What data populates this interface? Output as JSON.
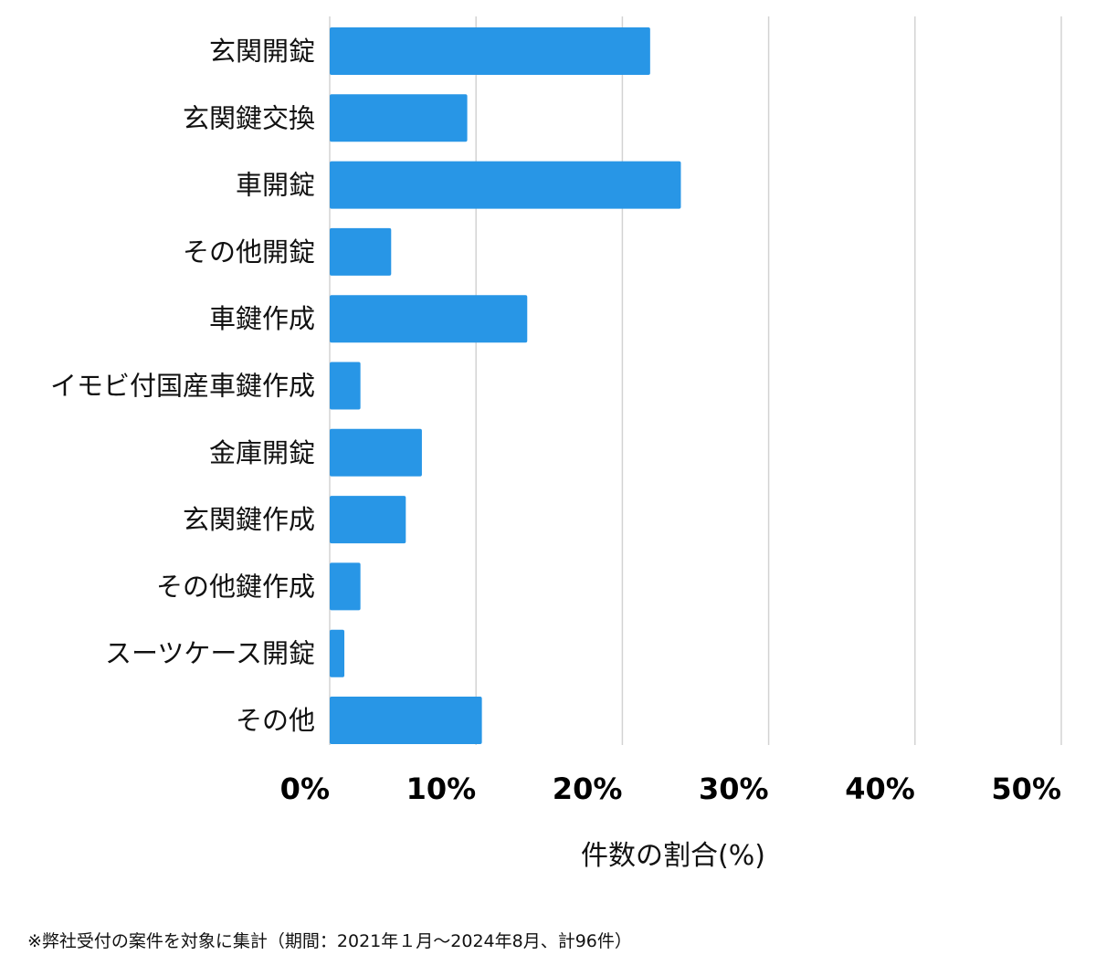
{
  "chart_data": {
    "type": "bar",
    "orientation": "horizontal",
    "categories": [
      "玄関開錠",
      "玄関鍵交換",
      "車開錠",
      "その他開錠",
      "車鍵作成",
      "イモビ付国産車鍵作成",
      "金庫開錠",
      "玄関鍵作成",
      "その他鍵作成",
      "スーツケース開錠",
      "その他"
    ],
    "values": [
      21.9,
      9.4,
      24.0,
      4.2,
      13.5,
      2.1,
      6.3,
      5.2,
      2.1,
      1.0,
      10.4
    ],
    "xlim": [
      0,
      50
    ],
    "xticks": [
      0,
      10,
      20,
      30,
      40,
      50
    ],
    "xtick_labels": [
      "0%",
      "10%",
      "20%",
      "30%",
      "40%",
      "50%"
    ],
    "xlabel": "件数の割合(%)",
    "ylabel": "",
    "title": "",
    "grid": "vertical",
    "bar_color": "#2896e6",
    "grid_color": "#d3d3d3"
  },
  "footnote": "※弊社受付の案件を対象に集計（期間：2021年１月〜2024年8月、計96件）"
}
